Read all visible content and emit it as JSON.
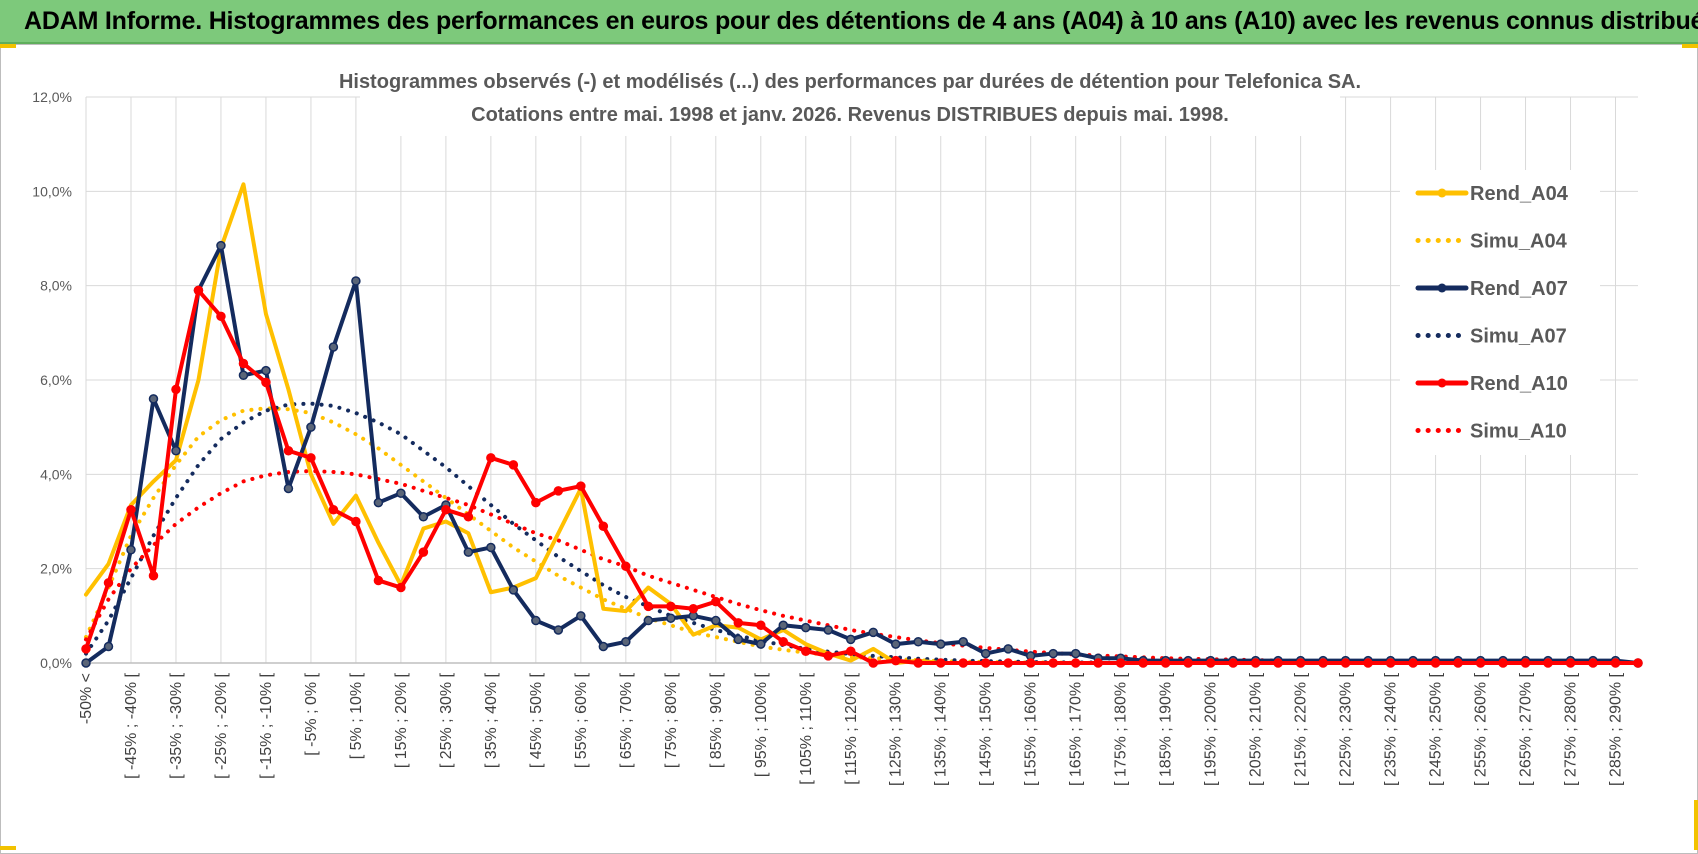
{
  "banner": {
    "title": "ADAM Informe. Histogrammes des performances en euros pour des détentions de 4 ans (A04) à 10 ans (A10) avec les revenus connus distribués"
  },
  "colors": {
    "yellow": "#ffc000",
    "navy": "#142b5e",
    "red": "#ff0000",
    "banner_bg": "#7dc97b",
    "grid": "#d9d9d9"
  },
  "chart_data": {
    "type": "line",
    "title_lines": [
      "Histogrammes observés (-) et modélisés (...) des performances par durées de détention pour Telefonica SA.",
      "Cotations entre mai. 1998 et janv. 2026. Revenus DISTRIBUES depuis mai. 1998."
    ],
    "y_ticks": [
      "0,0%",
      "2,0%",
      "4,0%",
      "6,0%",
      "8,0%",
      "10,0%",
      "12,0%"
    ],
    "ylim": [
      0,
      12
    ],
    "x_tick_labels": [
      "-50% <",
      "[ -45% ; -40% [",
      "[ -35% ; -30% [",
      "[ -25% ; -20% [",
      "[ -15% ; -10% [",
      "[ -5% ; 0% [",
      "[ 5% ; 10% [",
      "[ 15% ; 20% [",
      "[ 25% ; 30% [",
      "[ 35% ; 40% [",
      "[ 45% ; 50% [",
      "[ 55% ; 60% [",
      "[ 65% ; 70% [",
      "[ 75% ; 80% [",
      "[ 85% ; 90% [",
      "[ 95% ; 100% [",
      "[ 105% ; 110% [",
      "[ 115% ; 120% [",
      "[ 125% ; 130% [",
      "[ 135% ; 140% [",
      "[ 145% ; 150% [",
      "[ 155% ; 160% [",
      "[ 165% ; 170% [",
      "[ 175% ; 180% [",
      "[ 185% ; 190% [",
      "[ 195% ; 200% [",
      "[ 205% ; 210% [",
      "[ 215% ; 220% [",
      "[ 225% ; 230% [",
      "[ 235% ; 240% [",
      "[ 245% ; 250% [",
      "[ 255% ; 260% [",
      "[ 265% ; 270% [",
      "[ 275% ; 280% [",
      "[ 285% ; 290% ["
    ],
    "categories_count": 70,
    "legend": [
      "Rend_A04",
      "Simu_A04",
      "Rend_A07",
      "Simu_A07",
      "Rend_A10",
      "Simu_A10"
    ],
    "series": [
      {
        "name": "Rend_A04",
        "style": "solid",
        "color": "#ffc000",
        "markers": false,
        "values": [
          1.45,
          2.1,
          3.35,
          3.85,
          4.3,
          6.0,
          8.8,
          10.15,
          7.4,
          5.8,
          4.0,
          2.95,
          3.55,
          2.55,
          1.65,
          2.85,
          3.0,
          2.75,
          1.5,
          1.6,
          1.8,
          2.75,
          3.7,
          1.15,
          1.1,
          1.6,
          1.25,
          0.6,
          0.8,
          0.75,
          0.5,
          0.7,
          0.4,
          0.2,
          0.05,
          0.3,
          0.0,
          0.05,
          0,
          0,
          0,
          0,
          0,
          0,
          0,
          0,
          0,
          0,
          0,
          0,
          0,
          0,
          0,
          0,
          0,
          0,
          0,
          0,
          0,
          0,
          0,
          0,
          0,
          0,
          0,
          0,
          0,
          0,
          0,
          0
        ]
      },
      {
        "name": "Simu_A04",
        "style": "dotted",
        "color": "#ffc000",
        "markers": false,
        "values": [
          0.55,
          1.6,
          2.7,
          3.5,
          4.2,
          4.8,
          5.15,
          5.35,
          5.4,
          5.38,
          5.3,
          5.1,
          4.85,
          4.55,
          4.2,
          3.85,
          3.5,
          3.15,
          2.8,
          2.45,
          2.15,
          1.85,
          1.6,
          1.35,
          1.15,
          0.95,
          0.8,
          0.65,
          0.55,
          0.45,
          0.35,
          0.28,
          0.22,
          0.17,
          0.13,
          0.1,
          0.08,
          0.06,
          0.04,
          0.03,
          0.02,
          0.015,
          0.01,
          0.01,
          0.005,
          0,
          0,
          0,
          0,
          0,
          0,
          0,
          0,
          0,
          0,
          0,
          0,
          0,
          0,
          0,
          0,
          0,
          0,
          0,
          0,
          0,
          0,
          0,
          0,
          0
        ]
      },
      {
        "name": "Rend_A07",
        "style": "solid",
        "color": "#142b5e",
        "markers": true,
        "values": [
          0.0,
          0.35,
          2.4,
          5.6,
          4.5,
          7.9,
          8.85,
          6.1,
          6.2,
          3.7,
          5.0,
          6.7,
          8.1,
          3.4,
          3.6,
          3.1,
          3.35,
          2.35,
          2.45,
          1.55,
          0.9,
          0.7,
          1.0,
          0.35,
          0.45,
          0.9,
          0.95,
          1.0,
          0.9,
          0.5,
          0.4,
          0.8,
          0.75,
          0.7,
          0.5,
          0.65,
          0.4,
          0.45,
          0.4,
          0.45,
          0.2,
          0.3,
          0.15,
          0.2,
          0.2,
          0.1,
          0.1,
          0.05,
          0.05,
          0.05,
          0.05,
          0.05,
          0.05,
          0.05,
          0.05,
          0.05,
          0.05,
          0.05,
          0.05,
          0.05,
          0.05,
          0.05,
          0.05,
          0.05,
          0.05,
          0.05,
          0.05,
          0.05,
          0.05,
          0.0
        ]
      },
      {
        "name": "Simu_A07",
        "style": "dotted",
        "color": "#142b5e",
        "markers": false,
        "values": [
          0.2,
          0.9,
          1.8,
          2.7,
          3.5,
          4.2,
          4.75,
          5.1,
          5.35,
          5.48,
          5.5,
          5.45,
          5.3,
          5.1,
          4.85,
          4.5,
          4.15,
          3.75,
          3.35,
          2.95,
          2.6,
          2.25,
          1.95,
          1.65,
          1.4,
          1.2,
          1.0,
          0.85,
          0.7,
          0.58,
          0.47,
          0.38,
          0.3,
          0.24,
          0.19,
          0.15,
          0.12,
          0.09,
          0.07,
          0.05,
          0.04,
          0.03,
          0.02,
          0.015,
          0.01,
          0.01,
          0,
          0,
          0,
          0,
          0,
          0,
          0,
          0,
          0,
          0,
          0,
          0,
          0,
          0,
          0,
          0,
          0,
          0,
          0,
          0,
          0,
          0,
          0,
          0
        ]
      },
      {
        "name": "Rend_A10",
        "style": "solid",
        "color": "#ff0000",
        "markers": true,
        "values": [
          0.3,
          1.7,
          3.25,
          1.85,
          5.8,
          7.9,
          7.35,
          6.35,
          5.95,
          4.5,
          4.35,
          3.25,
          3.0,
          1.75,
          1.6,
          2.35,
          3.25,
          3.1,
          4.35,
          4.2,
          3.4,
          3.65,
          3.75,
          2.9,
          2.05,
          1.2,
          1.2,
          1.15,
          1.3,
          0.85,
          0.8,
          0.45,
          0.25,
          0.15,
          0.25,
          0.0,
          0.05,
          0.0,
          0,
          0,
          0,
          0,
          0,
          0,
          0,
          0,
          0,
          0,
          0,
          0,
          0,
          0,
          0,
          0,
          0,
          0,
          0,
          0,
          0,
          0,
          0,
          0,
          0,
          0,
          0,
          0,
          0,
          0,
          0,
          0
        ]
      },
      {
        "name": "Simu_A10",
        "style": "dotted",
        "color": "#ff0000",
        "markers": false,
        "values": [
          0.5,
          1.35,
          2.0,
          2.5,
          2.95,
          3.3,
          3.6,
          3.85,
          3.98,
          4.05,
          4.07,
          4.05,
          4.0,
          3.9,
          3.8,
          3.65,
          3.5,
          3.35,
          3.15,
          2.95,
          2.75,
          2.6,
          2.4,
          2.2,
          2.05,
          1.85,
          1.7,
          1.55,
          1.4,
          1.25,
          1.12,
          1.0,
          0.9,
          0.8,
          0.7,
          0.62,
          0.55,
          0.48,
          0.42,
          0.37,
          0.32,
          0.28,
          0.24,
          0.21,
          0.18,
          0.16,
          0.14,
          0.12,
          0.1,
          0.09,
          0.08,
          0.07,
          0.06,
          0.05,
          0.04,
          0.04,
          0.03,
          0.03,
          0.02,
          0.02,
          0.02,
          0.015,
          0.01,
          0.01,
          0.01,
          0.01,
          0.005,
          0.005,
          0.005,
          0.0
        ]
      }
    ]
  }
}
